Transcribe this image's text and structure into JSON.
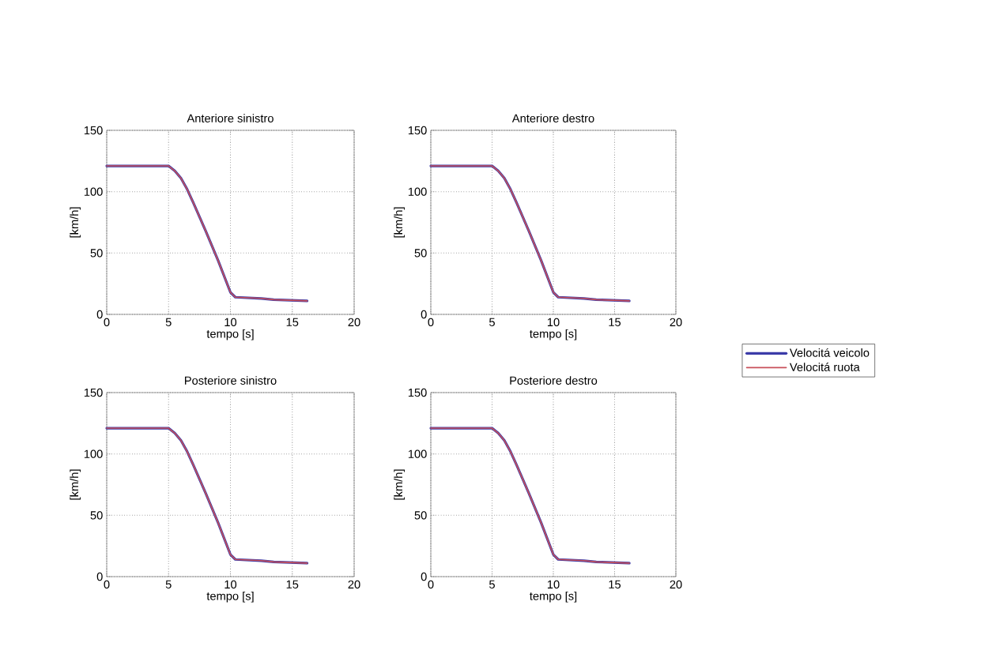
{
  "chart_data": [
    {
      "type": "line",
      "title": "Anteriore sinistro",
      "xlabel": "tempo [s]",
      "ylabel": "[km/h]",
      "xlim": [
        0,
        20
      ],
      "ylim": [
        0,
        150
      ],
      "xticks": [
        0,
        5,
        10,
        15,
        20
      ],
      "yticks": [
        0,
        50,
        100,
        150
      ],
      "grid": true,
      "legend": false,
      "series": [
        {
          "color": "#3b3ba8",
          "x": [
            0,
            5,
            5.5,
            6,
            6.5,
            7,
            8,
            9,
            10,
            10.4,
            12.5,
            13.5,
            16.2
          ],
          "values": [
            121,
            121,
            117,
            111,
            102,
            91,
            68,
            44,
            18,
            14,
            13,
            12,
            11
          ]
        },
        {
          "color": "#c8505a",
          "x": [
            0,
            5,
            5.5,
            6,
            6.5,
            7,
            8,
            9,
            10,
            10.4,
            12.5,
            13.5,
            16.2
          ],
          "values": [
            121,
            121,
            117,
            111,
            102,
            91,
            68,
            44,
            18,
            14,
            13,
            12,
            11
          ]
        }
      ]
    },
    {
      "type": "line",
      "title": "Anteriore destro",
      "xlabel": "tempo [s]",
      "ylabel": "[km/h]",
      "xlim": [
        0,
        20
      ],
      "ylim": [
        0,
        150
      ],
      "xticks": [
        0,
        5,
        10,
        15,
        20
      ],
      "yticks": [
        0,
        50,
        100,
        150
      ],
      "grid": true,
      "legend": "right",
      "series": [
        {
          "name": "Velocitá veicolo",
          "color": "#3b3ba8",
          "x": [
            0,
            5,
            5.5,
            6,
            6.5,
            7,
            8,
            9,
            10,
            10.4,
            12.5,
            13.5,
            16.2
          ],
          "values": [
            121,
            121,
            117,
            111,
            102,
            91,
            68,
            44,
            18,
            14,
            13,
            12,
            11
          ]
        },
        {
          "name": "Velocitá ruota",
          "color": "#c8505a",
          "x": [
            0,
            5,
            5.5,
            6,
            6.5,
            7,
            8,
            9,
            10,
            10.4,
            12.5,
            13.5,
            16.2
          ],
          "values": [
            121,
            121,
            117,
            111,
            102,
            91,
            68,
            44,
            18,
            14,
            13,
            12,
            11
          ]
        }
      ]
    },
    {
      "type": "line",
      "title": "Posteriore sinistro",
      "xlabel": "tempo [s]",
      "ylabel": "[km/h]",
      "xlim": [
        0,
        20
      ],
      "ylim": [
        0,
        150
      ],
      "xticks": [
        0,
        5,
        10,
        15,
        20
      ],
      "yticks": [
        0,
        50,
        100,
        150
      ],
      "grid": true,
      "legend": false,
      "series": [
        {
          "color": "#3b3ba8",
          "x": [
            0,
            5,
            5.5,
            6,
            6.5,
            7,
            8,
            9,
            10,
            10.4,
            12.5,
            13.5,
            16.2
          ],
          "values": [
            121,
            121,
            117,
            111,
            102,
            91,
            68,
            44,
            18,
            14,
            13,
            12,
            11
          ]
        },
        {
          "color": "#c8505a",
          "x": [
            0,
            5,
            5.5,
            6,
            6.5,
            7,
            8,
            9,
            10,
            10.4,
            12.5,
            13.5,
            16.2
          ],
          "values": [
            121,
            121,
            117,
            111,
            102,
            91,
            68,
            44,
            18,
            14,
            13,
            12,
            11
          ]
        }
      ]
    },
    {
      "type": "line",
      "title": "Posteriore destro",
      "xlabel": "tempo [s]",
      "ylabel": "[km/h]",
      "xlim": [
        0,
        20
      ],
      "ylim": [
        0,
        150
      ],
      "xticks": [
        0,
        5,
        10,
        15,
        20
      ],
      "yticks": [
        0,
        50,
        100,
        150
      ],
      "grid": true,
      "legend": false,
      "series": [
        {
          "color": "#3b3ba8",
          "x": [
            0,
            5,
            5.5,
            6,
            6.5,
            7,
            8,
            9,
            10,
            10.4,
            12.5,
            13.5,
            16.2
          ],
          "values": [
            121,
            121,
            117,
            111,
            102,
            91,
            68,
            44,
            18,
            14,
            13,
            12,
            11
          ]
        },
        {
          "color": "#c8505a",
          "x": [
            0,
            5,
            5.5,
            6,
            6.5,
            7,
            8,
            9,
            10,
            10.4,
            12.5,
            13.5,
            16.2
          ],
          "values": [
            121,
            121,
            117,
            111,
            102,
            91,
            68,
            44,
            18,
            14,
            13,
            12,
            11
          ]
        }
      ]
    }
  ]
}
